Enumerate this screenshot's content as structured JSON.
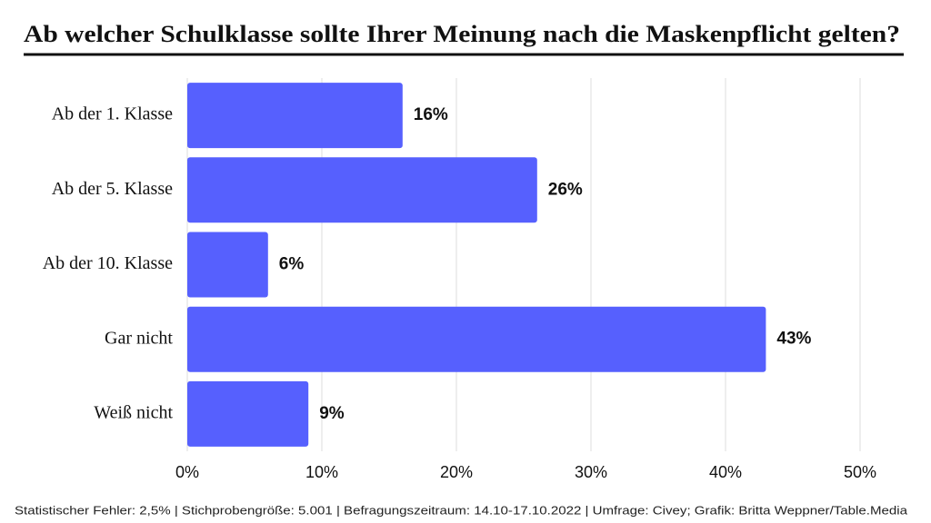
{
  "chart_data": {
    "type": "bar",
    "orientation": "horizontal",
    "title": "Ab welcher Schulklasse sollte Ihrer Meinung nach die Maskenpflicht gelten?",
    "categories": [
      "Ab der 1. Klasse",
      "Ab der 5. Klasse",
      "Ab der 10. Klasse",
      "Gar nicht",
      "Weiß nicht"
    ],
    "values": [
      16,
      26,
      6,
      43,
      9
    ],
    "value_labels": [
      "16%",
      "26%",
      "6%",
      "43%",
      "9%"
    ],
    "color": "#5660fe",
    "xlim": [
      0,
      50
    ],
    "xticks": [
      {
        "value": 0,
        "label": "0%"
      },
      {
        "value": 10,
        "label": "10%"
      },
      {
        "value": 20,
        "label": "20%"
      },
      {
        "value": 30,
        "label": "30%"
      },
      {
        "value": 40,
        "label": "40%"
      },
      {
        "value": 50,
        "label": "50%"
      }
    ],
    "grid": true,
    "footnote": "Statistischer Fehler: 2,5% | Stichprobengröße: 5.001 | Befragungszeitraum: 14.10-17.10.2022 | Umfrage: Civey; Grafik: Britta Weppner/Table.Media"
  }
}
